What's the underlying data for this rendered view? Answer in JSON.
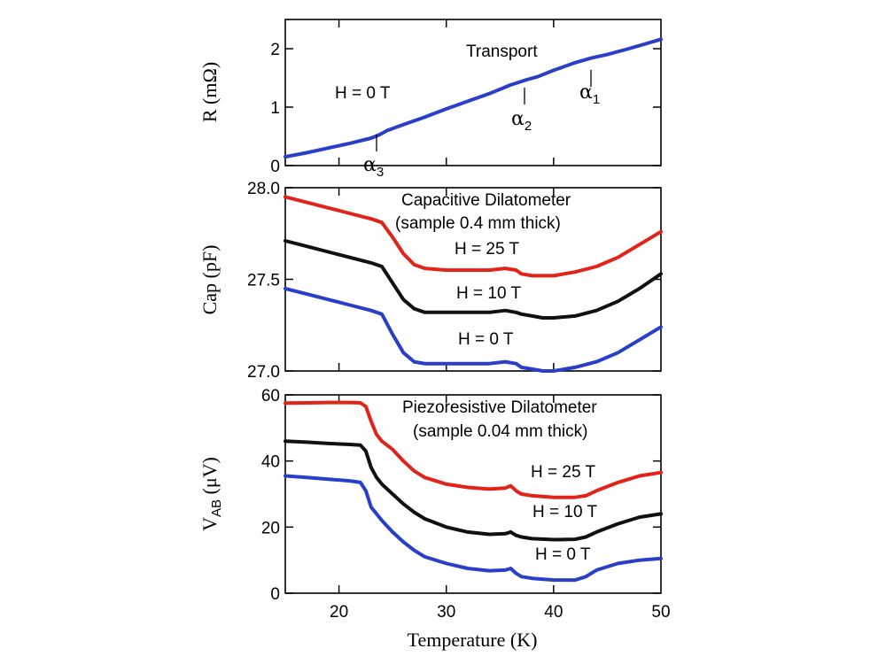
{
  "chart_data": [
    {
      "type": "line",
      "panel": "transport",
      "title": "Transport",
      "ylabel": "R (mΩ)",
      "xlim": [
        15,
        50
      ],
      "ylim": [
        0,
        2.5
      ],
      "yticks": [
        0,
        1,
        2
      ],
      "series": [
        {
          "color": "#2a3fc9",
          "x": [
            15,
            17,
            19,
            21,
            23,
            23.8,
            24.5,
            26,
            28,
            30,
            32,
            34,
            36,
            37.5,
            38.5,
            40,
            42,
            43.5,
            45,
            47,
            50
          ],
          "y": [
            0.15,
            0.22,
            0.3,
            0.38,
            0.47,
            0.53,
            0.6,
            0.7,
            0.83,
            0.97,
            1.1,
            1.23,
            1.38,
            1.47,
            1.52,
            1.63,
            1.76,
            1.84,
            1.9,
            2.0,
            2.16
          ]
        }
      ],
      "annotations": [
        {
          "text": "H = 0 T"
        },
        {
          "text": "α",
          "sub": "1",
          "x": 43.5
        },
        {
          "text": "α",
          "sub": "2",
          "x": 37.5
        },
        {
          "text": "α",
          "sub": "3",
          "x": 24
        }
      ]
    },
    {
      "type": "line",
      "panel": "capacitive",
      "title": "Capacitive Dilatometer",
      "subtitle": "(sample 0.4 mm thick)",
      "ylabel": "Cap (pF)",
      "xlim": [
        15,
        50
      ],
      "ylim": [
        27.0,
        28.0
      ],
      "yticks": [
        27.0,
        27.5,
        28.0
      ],
      "yticklabels": [
        "27.0",
        "27.5",
        "28.0"
      ],
      "series": [
        {
          "name": "H = 25 T",
          "color": "#e2231a",
          "x": [
            15,
            17,
            19,
            21,
            23,
            24,
            25,
            26,
            27,
            28,
            30,
            32,
            34,
            35.5,
            36.5,
            37,
            38,
            39,
            40,
            42,
            44,
            46,
            48,
            50
          ],
          "y": [
            27.95,
            27.92,
            27.89,
            27.86,
            27.83,
            27.81,
            27.73,
            27.64,
            27.58,
            27.56,
            27.55,
            27.55,
            27.55,
            27.56,
            27.55,
            27.53,
            27.52,
            27.52,
            27.52,
            27.54,
            27.57,
            27.62,
            27.69,
            27.76
          ]
        },
        {
          "name": "H = 10 T",
          "color": "#111111",
          "x": [
            15,
            17,
            19,
            21,
            23,
            24,
            25,
            26,
            27,
            28,
            30,
            32,
            34,
            35.5,
            36.5,
            37,
            38,
            39,
            40,
            42,
            44,
            46,
            48,
            50
          ],
          "y": [
            27.71,
            27.68,
            27.65,
            27.62,
            27.59,
            27.57,
            27.48,
            27.39,
            27.34,
            27.32,
            27.32,
            27.32,
            27.32,
            27.33,
            27.32,
            27.31,
            27.3,
            27.29,
            27.29,
            27.3,
            27.33,
            27.38,
            27.45,
            27.53
          ]
        },
        {
          "name": "H = 0 T",
          "color": "#2a3fc9",
          "x": [
            15,
            17,
            19,
            21,
            23,
            24,
            25,
            26,
            27,
            28,
            30,
            32,
            34,
            35.5,
            36.5,
            37,
            38,
            39,
            40,
            42,
            44,
            46,
            48,
            50
          ],
          "y": [
            27.45,
            27.42,
            27.39,
            27.36,
            27.33,
            27.31,
            27.2,
            27.1,
            27.05,
            27.04,
            27.04,
            27.04,
            27.04,
            27.05,
            27.04,
            27.02,
            27.01,
            27.0,
            27.0,
            27.02,
            27.05,
            27.1,
            27.17,
            27.24
          ]
        }
      ]
    },
    {
      "type": "line",
      "panel": "piezoresistive",
      "title": "Piezoresistive Dilatometer",
      "subtitle": "(sample 0.04 mm thick)",
      "ylabel": "V",
      "ylabel_sub": "AB",
      "ylabel_unit": " (μV)",
      "xlabel": "Temperature (K)",
      "xlim": [
        15,
        50
      ],
      "ylim": [
        0,
        60
      ],
      "xticks": [
        20,
        30,
        40,
        50
      ],
      "yticks": [
        0,
        20,
        40,
        60
      ],
      "series": [
        {
          "name": "H = 25 T",
          "color": "#e2231a",
          "x": [
            15,
            17,
            19,
            21,
            22,
            22.5,
            23,
            23.5,
            24,
            25,
            26,
            27,
            28,
            30,
            32,
            34,
            35.5,
            36,
            36.5,
            37,
            38,
            40,
            42,
            43,
            44,
            46,
            48,
            50
          ],
          "y": [
            57.5,
            57.6,
            57.7,
            57.7,
            57.6,
            56.5,
            52.0,
            48.0,
            46.0,
            43.5,
            40.0,
            37.0,
            35.0,
            33.0,
            32.0,
            31.5,
            31.8,
            32.5,
            31.0,
            30.0,
            29.5,
            29.0,
            29.0,
            29.5,
            31.0,
            33.5,
            35.5,
            36.5
          ]
        },
        {
          "name": "H = 10 T",
          "color": "#111111",
          "x": [
            15,
            17,
            19,
            21,
            22,
            22.5,
            23,
            23.5,
            24,
            25,
            26,
            27,
            28,
            30,
            32,
            34,
            35.5,
            36,
            36.5,
            37,
            38,
            40,
            42,
            43,
            44,
            46,
            48,
            50
          ],
          "y": [
            46.0,
            45.7,
            45.3,
            45.0,
            44.8,
            43.0,
            38.0,
            35.0,
            33.0,
            30.0,
            27.0,
            24.5,
            22.5,
            20.0,
            18.5,
            17.8,
            18.0,
            18.5,
            17.5,
            17.0,
            16.5,
            16.2,
            16.3,
            17.0,
            18.5,
            21.0,
            23.0,
            24.0
          ]
        },
        {
          "name": "H = 0 T",
          "color": "#2a3fc9",
          "x": [
            15,
            17,
            19,
            21,
            22,
            22.5,
            23,
            23.5,
            24,
            25,
            26,
            27,
            28,
            30,
            32,
            34,
            35.5,
            36,
            36.5,
            37,
            38,
            40,
            42,
            43,
            44,
            46,
            48,
            50
          ],
          "y": [
            35.5,
            35.0,
            34.5,
            34.0,
            33.5,
            31.0,
            26.0,
            24.0,
            22.0,
            18.5,
            15.5,
            13.0,
            11.0,
            9.0,
            7.5,
            6.8,
            7.0,
            7.5,
            6.0,
            5.0,
            4.5,
            4.0,
            4.0,
            5.0,
            7.0,
            9.0,
            10.0,
            10.5
          ]
        }
      ]
    }
  ]
}
